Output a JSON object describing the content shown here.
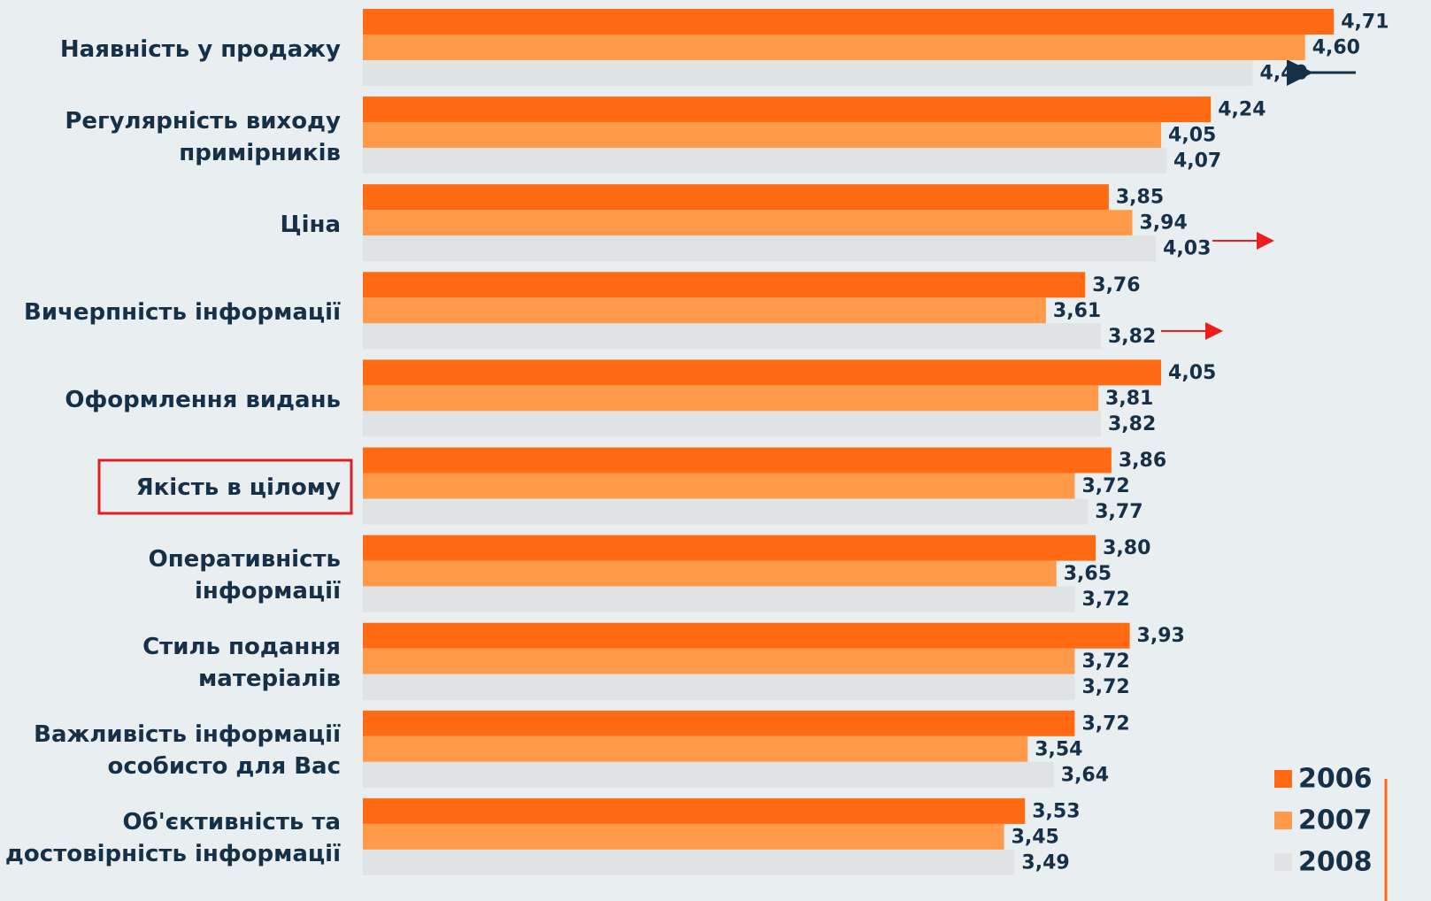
{
  "chart_data": {
    "type": "bar",
    "orientation": "horizontal",
    "categories": [
      "Наявність у продажу",
      "Регулярність виходу\nпримірників",
      "Ціна",
      "Вичерпність інформації",
      "Оформлення видань",
      "Якість в цілому",
      "Оперативність\nінформації",
      "Стиль подання\nматеріалів",
      "Важливість інформації\nособисто для Вас",
      "Об'єктивність та\nдостовірність інформації"
    ],
    "series": [
      {
        "name": "2006",
        "color": "#ff6a13",
        "values": [
          4.71,
          4.24,
          3.85,
          3.76,
          4.05,
          3.86,
          3.8,
          3.93,
          3.72,
          3.53
        ],
        "value_labels": [
          "4,71",
          "4,24",
          "3,85",
          "3,76",
          "4,05",
          "3,86",
          "3,80",
          "3,93",
          "3,72",
          "3,53"
        ]
      },
      {
        "name": "2007",
        "color": "#ff9a4a",
        "values": [
          4.6,
          4.05,
          3.94,
          3.61,
          3.81,
          3.72,
          3.65,
          3.72,
          3.54,
          3.45
        ],
        "value_labels": [
          "4,60",
          "4,05",
          "3,94",
          "3,61",
          "3,81",
          "3,72",
          "3,65",
          "3,72",
          "3,54",
          "3,45"
        ]
      },
      {
        "name": "2008",
        "color": "#dfe3e3",
        "values": [
          4.4,
          4.07,
          4.03,
          3.82,
          3.82,
          3.77,
          3.72,
          3.72,
          3.64,
          3.49
        ],
        "value_labels": [
          "4,40",
          "4,07",
          "4,03",
          "3,82",
          "3,82",
          "3,77",
          "3,72",
          "3,72",
          "3,64",
          "3,49"
        ]
      }
    ],
    "xlim": [
      1,
      5
    ],
    "legend": "bottom-right"
  }
}
